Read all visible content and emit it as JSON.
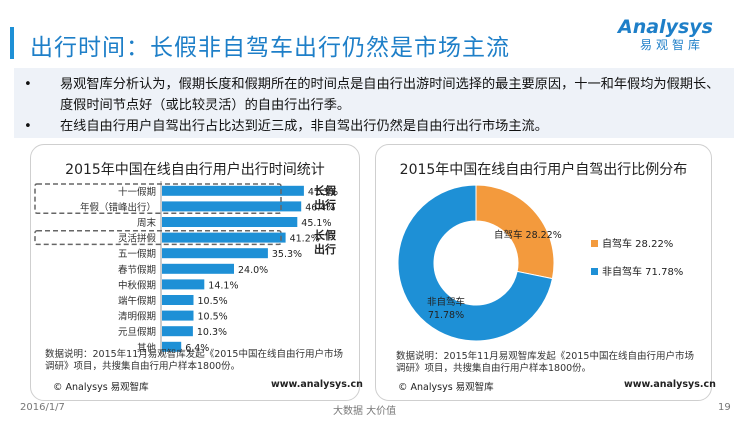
{
  "header": {
    "title": "出行时间：长假非自驾车出行仍然是市场主流",
    "logo_text": "Analysys",
    "logo_sub": "易观智库"
  },
  "summary": {
    "bullets": [
      {
        "marker": "•",
        "text": "易观智库分析认为，假期长度和假期所在的时间点是自由行出游时间选择的最主要原因，十一和年假均为假期长、度假时间节点好（或比较灵活）的自由行出行季。"
      },
      {
        "marker": "•",
        "text": "在线自由行用户自驾出行占比达到近三成，非自驾出行仍然是自由行出行市场主流。"
      }
    ]
  },
  "left_panel": {
    "note": "数据说明：2015年11月易观智库发起《2015中国在线自由行用户市场调研》项目，共搜集自由行用户样本1800份。",
    "copyright": "© Analysys 易观智库",
    "url": "www.analysys.cn",
    "group_labels": [
      {
        "text": "长假出行"
      },
      {
        "text": "长假出行"
      }
    ]
  },
  "right_panel": {
    "note": "数据说明：2015年11月易观智库发起《2015中国在线自由行用户市场调研》项目，共搜集自由行用户样本1800份。",
    "copyright": "© Analysys 易观智库",
    "url": "www.analysys.cn"
  },
  "footer": {
    "date": "2016/1/7",
    "center": "大数据   大价值",
    "page": "19"
  },
  "colors": {
    "accent": "#1e90d6",
    "orange": "#f39a3d",
    "bar": "#1e90d6"
  },
  "chart_data": [
    {
      "type": "bar",
      "orientation": "horizontal",
      "title": "2015年中国在线自由行用户出行时间统计",
      "categories": [
        "十一假期",
        "年假（错峰出行）",
        "周末",
        "灵活拼假",
        "五一假期",
        "春节假期",
        "中秋假期",
        "端午假期",
        "清明假期",
        "元旦假期",
        "其他"
      ],
      "values": [
        47.3,
        46.4,
        45.1,
        41.2,
        35.3,
        24.0,
        14.1,
        10.5,
        10.5,
        10.3,
        6.4
      ],
      "value_labels": [
        "47.3%",
        "46.4%",
        "45.1%",
        "41.2%",
        "35.3%",
        "24.0%",
        "14.1%",
        "10.5%",
        "10.5%",
        "10.3%",
        "6.4%"
      ],
      "xlim": [
        0,
        50
      ],
      "unit": "%"
    },
    {
      "type": "pie",
      "style": "donut",
      "title": "2015年中国在线自由行用户自驾出行比例分布",
      "categories": [
        "自驾车",
        "非自驾车"
      ],
      "values": [
        28.22,
        71.78
      ],
      "slice_labels": [
        "自驾车 28.22%",
        "非自驾车\n71.78%"
      ],
      "legend": [
        "自驾车 28.22%",
        "非自驾车 71.78%"
      ],
      "legend_position": "right",
      "colors": [
        "#f39a3d",
        "#1e90d6"
      ]
    }
  ]
}
